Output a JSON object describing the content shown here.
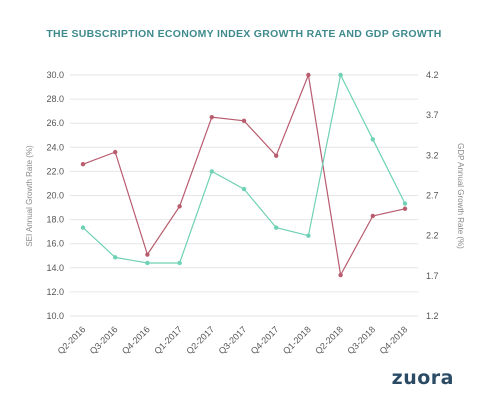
{
  "chart_data": {
    "type": "line",
    "title": "THE SUBSCRIPTION ECONOMY INDEX GROWTH RATE AND GDP GROWTH",
    "categories": [
      "Q2-2016",
      "Q3-2016",
      "Q4-2016",
      "Q1-2017",
      "Q2-2017",
      "Q3-2017",
      "Q4-2017",
      "Q1-2018",
      "Q2-2018",
      "Q3-2018",
      "Q4-2018"
    ],
    "series": [
      {
        "axis": "left",
        "color": "#b85c6e",
        "values": [
          22.6,
          23.6,
          15.1,
          19.1,
          26.5,
          26.2,
          23.3,
          30.0,
          13.4,
          18.3,
          18.9
        ]
      },
      {
        "axis": "right",
        "color": "#6fd1b5",
        "values": [
          2.3,
          1.93,
          1.86,
          1.86,
          3.0,
          2.78,
          2.3,
          2.2,
          4.2,
          3.4,
          2.6
        ]
      }
    ],
    "ylabel": "SEI Annual Growth Rate (%)",
    "y2label": "GDP Annual Growth Rate (%)",
    "ylim": [
      10.0,
      30.0
    ],
    "y2lim": [
      1.2,
      4.2
    ],
    "yticks": [
      "10.0",
      "12.0",
      "14.0",
      "16.0",
      "18.0",
      "20.0",
      "22.0",
      "24.0",
      "26.0",
      "28.0",
      "30.0"
    ],
    "y2ticks": [
      "1.2",
      "1.7",
      "2.2",
      "2.7",
      "3.2",
      "3.7",
      "4.2"
    ],
    "grid": true,
    "title_color": "#3e8a8d"
  },
  "logo": {
    "text": "zuora",
    "color": "#2b4a63"
  }
}
